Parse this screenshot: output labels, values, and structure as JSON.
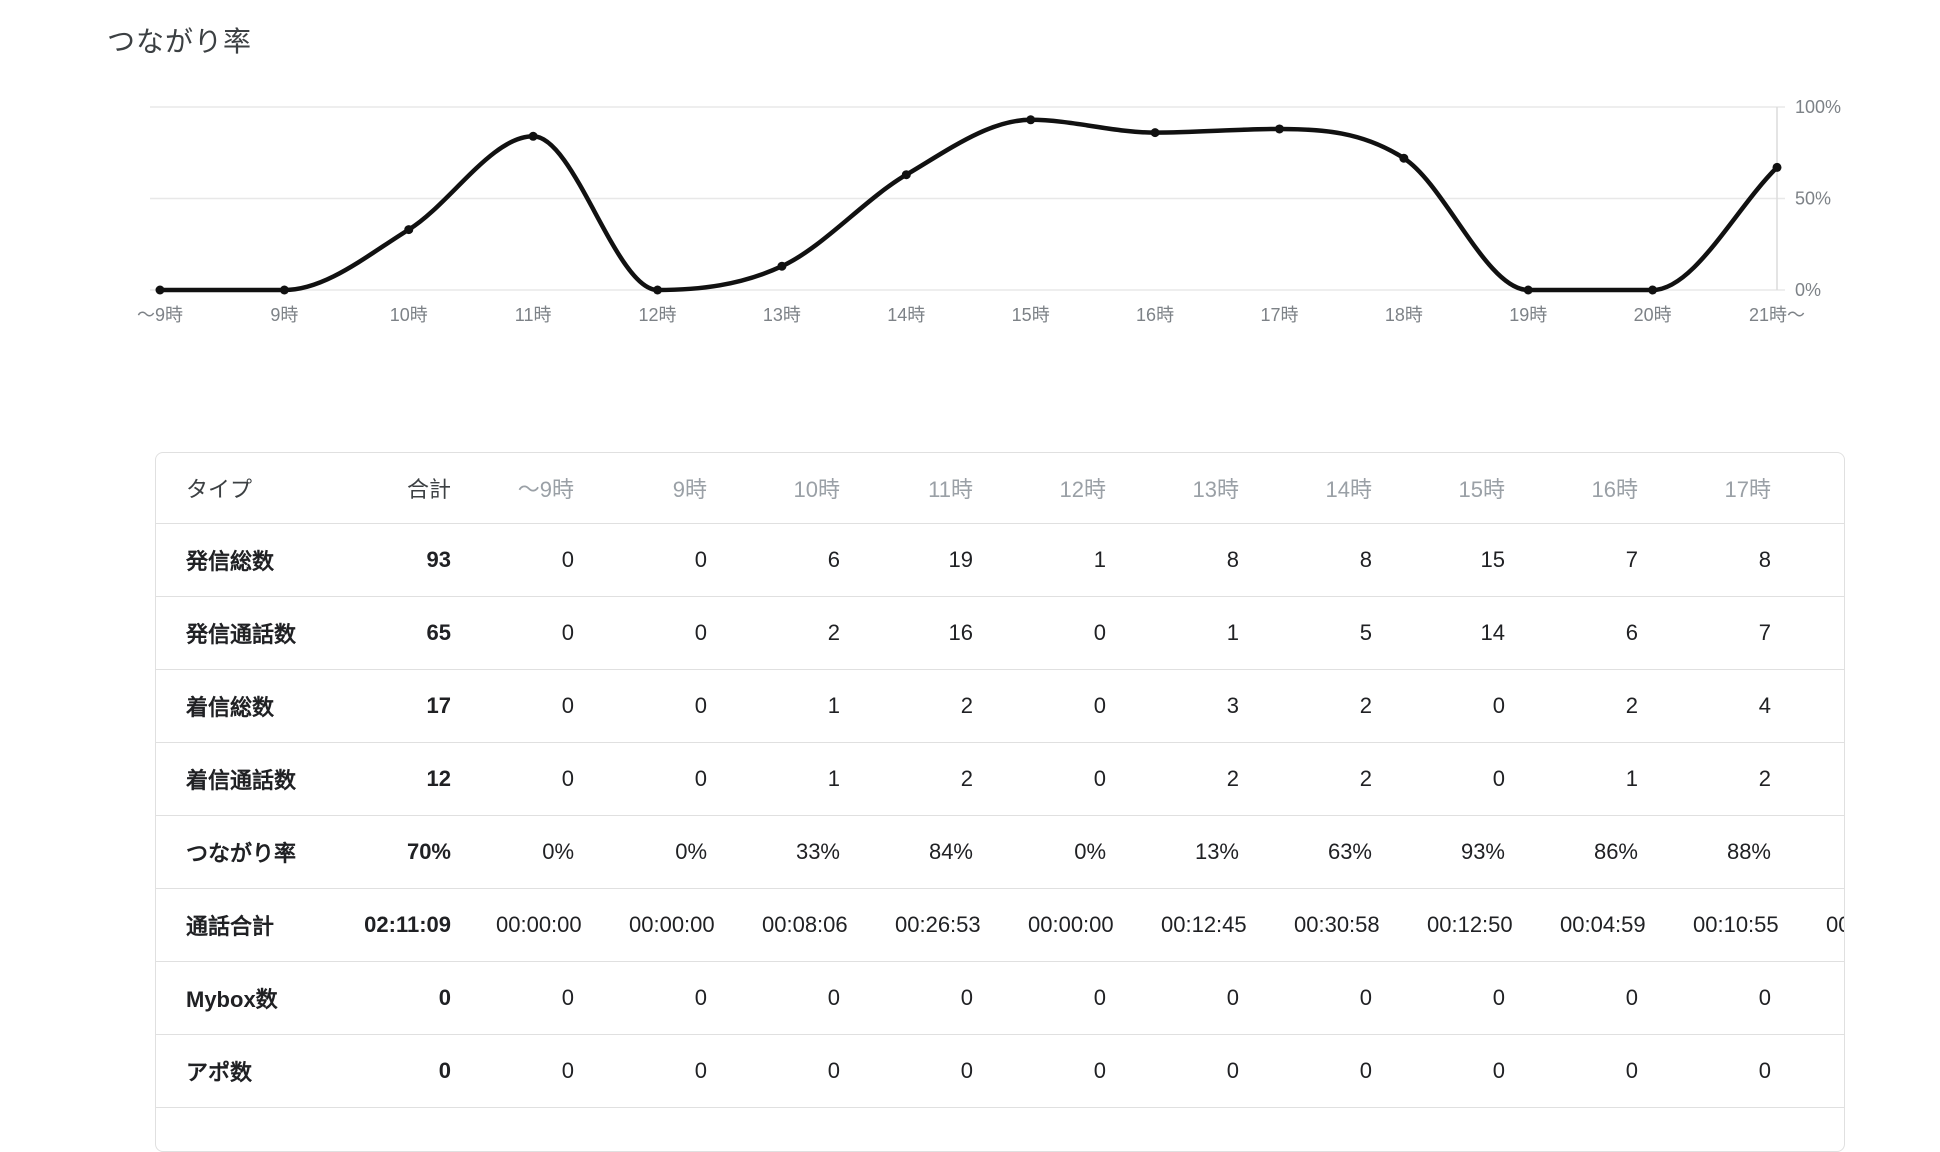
{
  "page": {
    "title": "つながり率",
    "background": "#ffffff"
  },
  "chart_data": {
    "type": "line",
    "title": "つながり率",
    "x": [
      "～9時",
      "9時",
      "10時",
      "11時",
      "12時",
      "13時",
      "14時",
      "15時",
      "16時",
      "17時",
      "18時",
      "19時",
      "20時",
      "21時～"
    ],
    "values": [
      0,
      0,
      33,
      84,
      0,
      13,
      63,
      93,
      86,
      88,
      72,
      0,
      0,
      67
    ],
    "ylim": [
      0,
      100
    ],
    "ytick_values": [
      100,
      50,
      0
    ],
    "ytick_labels": [
      "100%",
      "50%",
      "0%"
    ],
    "y_axis_position": "right",
    "grid": "horizontal",
    "legend_position": "none",
    "line_color": "#111111",
    "point_color": "#111111",
    "grid_color": "#e8e8e8",
    "axis_line_color": "#dcdcdc",
    "tick_label_color": "#7d8287"
  },
  "table": {
    "columns": [
      "タイプ",
      "合計",
      "～9時",
      "9時",
      "10時",
      "11時",
      "12時",
      "13時",
      "14時",
      "15時",
      "16時",
      "17時"
    ],
    "clipped_column_header": "",
    "rows": [
      {
        "label": "発信総数",
        "total": "93",
        "values": [
          "0",
          "0",
          "6",
          "19",
          "1",
          "8",
          "8",
          "15",
          "7",
          "8"
        ],
        "clipped": ""
      },
      {
        "label": "発信通話数",
        "total": "65",
        "values": [
          "0",
          "0",
          "2",
          "16",
          "0",
          "1",
          "5",
          "14",
          "6",
          "7"
        ],
        "clipped": ""
      },
      {
        "label": "着信総数",
        "total": "17",
        "values": [
          "0",
          "0",
          "1",
          "2",
          "0",
          "3",
          "2",
          "0",
          "2",
          "4"
        ],
        "clipped": ""
      },
      {
        "label": "着信通話数",
        "total": "12",
        "values": [
          "0",
          "0",
          "1",
          "2",
          "0",
          "2",
          "2",
          "0",
          "1",
          "2"
        ],
        "clipped": ""
      },
      {
        "label": "つながり率",
        "total": "70%",
        "values": [
          "0%",
          "0%",
          "33%",
          "84%",
          "0%",
          "13%",
          "63%",
          "93%",
          "86%",
          "88%"
        ],
        "clipped": ""
      },
      {
        "label": "通話合計",
        "total": "02:11:09",
        "values": [
          "00:00:00",
          "00:00:00",
          "00:08:06",
          "00:26:53",
          "00:00:00",
          "00:12:45",
          "00:30:58",
          "00:12:50",
          "00:04:59",
          "00:10:55"
        ],
        "clipped": "00"
      },
      {
        "label": "Mybox数",
        "total": "0",
        "values": [
          "0",
          "0",
          "0",
          "0",
          "0",
          "0",
          "0",
          "0",
          "0",
          "0"
        ],
        "clipped": ""
      },
      {
        "label": "アポ数",
        "total": "0",
        "values": [
          "0",
          "0",
          "0",
          "0",
          "0",
          "0",
          "0",
          "0",
          "0",
          "0"
        ],
        "clipped": ""
      }
    ]
  }
}
